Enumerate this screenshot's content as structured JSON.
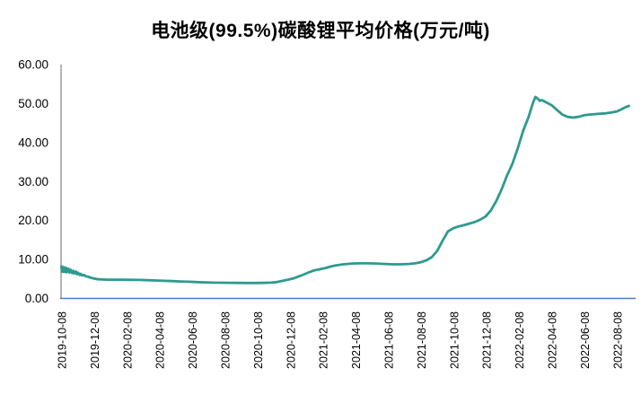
{
  "chart_data": {
    "type": "line",
    "title": "电池级(99.5%)碳酸锂平均价格(万元/吨)",
    "xlabel": "",
    "ylabel": "",
    "ylim": [
      0,
      60
    ],
    "grid": false,
    "legend_position": "none",
    "background_color": "#ffffff",
    "line_color": "#2e9a90",
    "y_axis_color": "#8c8c8c",
    "x_axis_color": "#4a7ebb",
    "text_color": "#000000",
    "yticks": [
      "0.00",
      "10.00",
      "20.00",
      "30.00",
      "40.00",
      "50.00",
      "60.00"
    ],
    "ytick_values": [
      0,
      10,
      20,
      30,
      40,
      50,
      60
    ],
    "xticks": [
      "2019-10-08",
      "2019-12-08",
      "2020-02-08",
      "2020-04-08",
      "2020-06-08",
      "2020-08-08",
      "2020-10-08",
      "2020-12-08",
      "2021-02-08",
      "2021-04-08",
      "2021-06-08",
      "2021-08-08",
      "2021-10-08",
      "2021-12-08",
      "2022-02-08",
      "2022-04-08",
      "2022-06-08",
      "2022-08-08"
    ],
    "series": [
      {
        "name": "电池级(99.5%)碳酸锂平均价格",
        "unit": "万元/吨",
        "points": [
          [
            "2019-10-08",
            8.25
          ],
          [
            "2019-10-09",
            6.9
          ],
          [
            "2019-10-10",
            8.1
          ],
          [
            "2019-10-11",
            6.8
          ],
          [
            "2019-10-14",
            7.95
          ],
          [
            "2019-10-15",
            6.75
          ],
          [
            "2019-10-17",
            7.8
          ],
          [
            "2019-10-18",
            6.7
          ],
          [
            "2019-10-21",
            7.6
          ],
          [
            "2019-10-23",
            6.6
          ],
          [
            "2019-10-25",
            7.4
          ],
          [
            "2019-10-28",
            6.5
          ],
          [
            "2019-10-30",
            7.1
          ],
          [
            "2019-11-01",
            6.4
          ],
          [
            "2019-11-04",
            6.9
          ],
          [
            "2019-11-06",
            6.2
          ],
          [
            "2019-11-08",
            6.6
          ],
          [
            "2019-11-11",
            6.0
          ],
          [
            "2019-11-13",
            6.3
          ],
          [
            "2019-11-15",
            5.9
          ],
          [
            "2019-11-19",
            6.0
          ],
          [
            "2019-11-22",
            5.7
          ],
          [
            "2019-11-26",
            5.6
          ],
          [
            "2019-12-02",
            5.3
          ],
          [
            "2019-12-06",
            5.15
          ],
          [
            "2019-12-11",
            5.0
          ],
          [
            "2019-12-16",
            4.9
          ],
          [
            "2019-12-23",
            4.85
          ],
          [
            "2020-01-02",
            4.8
          ],
          [
            "2020-01-15",
            4.8
          ],
          [
            "2020-02-01",
            4.78
          ],
          [
            "2020-02-15",
            4.76
          ],
          [
            "2020-03-01",
            4.74
          ],
          [
            "2020-03-16",
            4.68
          ],
          [
            "2020-04-01",
            4.6
          ],
          [
            "2020-04-16",
            4.52
          ],
          [
            "2020-05-01",
            4.45
          ],
          [
            "2020-05-16",
            4.36
          ],
          [
            "2020-06-01",
            4.28
          ],
          [
            "2020-06-16",
            4.2
          ],
          [
            "2020-07-01",
            4.12
          ],
          [
            "2020-07-16",
            4.06
          ],
          [
            "2020-08-01",
            4.02
          ],
          [
            "2020-08-16",
            4.0
          ],
          [
            "2020-09-01",
            3.98
          ],
          [
            "2020-09-16",
            3.96
          ],
          [
            "2020-10-01",
            3.96
          ],
          [
            "2020-10-16",
            3.98
          ],
          [
            "2020-11-01",
            4.05
          ],
          [
            "2020-11-12",
            4.2
          ],
          [
            "2020-11-22",
            4.5
          ],
          [
            "2020-12-02",
            4.8
          ],
          [
            "2020-12-12",
            5.1
          ],
          [
            "2020-12-22",
            5.6
          ],
          [
            "2021-01-01",
            6.1
          ],
          [
            "2021-01-11",
            6.7
          ],
          [
            "2021-01-21",
            7.2
          ],
          [
            "2021-02-01",
            7.5
          ],
          [
            "2021-02-11",
            7.8
          ],
          [
            "2021-02-21",
            8.2
          ],
          [
            "2021-03-03",
            8.5
          ],
          [
            "2021-03-13",
            8.7
          ],
          [
            "2021-03-23",
            8.85
          ],
          [
            "2021-04-02",
            8.95
          ],
          [
            "2021-04-16",
            9.0
          ],
          [
            "2021-05-01",
            9.0
          ],
          [
            "2021-05-16",
            8.95
          ],
          [
            "2021-06-01",
            8.85
          ],
          [
            "2021-06-16",
            8.75
          ],
          [
            "2021-07-01",
            8.75
          ],
          [
            "2021-07-16",
            8.85
          ],
          [
            "2021-07-28",
            9.0
          ],
          [
            "2021-08-08",
            9.3
          ],
          [
            "2021-08-18",
            9.8
          ],
          [
            "2021-08-28",
            10.6
          ],
          [
            "2021-09-07",
            12.2
          ],
          [
            "2021-09-17",
            14.8
          ],
          [
            "2021-09-27",
            17.2
          ],
          [
            "2021-10-07",
            18.0
          ],
          [
            "2021-10-17",
            18.5
          ],
          [
            "2021-10-27",
            18.8
          ],
          [
            "2021-11-06",
            19.2
          ],
          [
            "2021-11-16",
            19.6
          ],
          [
            "2021-11-26",
            20.2
          ],
          [
            "2021-12-06",
            21.0
          ],
          [
            "2021-12-16",
            22.6
          ],
          [
            "2021-12-26",
            25.0
          ],
          [
            "2022-01-05",
            28.0
          ],
          [
            "2022-01-15",
            31.5
          ],
          [
            "2022-01-25",
            34.5
          ],
          [
            "2022-02-04",
            38.5
          ],
          [
            "2022-02-14",
            43.0
          ],
          [
            "2022-02-24",
            46.5
          ],
          [
            "2022-03-04",
            50.0
          ],
          [
            "2022-03-09",
            51.7
          ],
          [
            "2022-03-14",
            51.2
          ],
          [
            "2022-03-17",
            50.7
          ],
          [
            "2022-03-21",
            50.9
          ],
          [
            "2022-03-28",
            50.4
          ],
          [
            "2022-04-08",
            49.6
          ],
          [
            "2022-04-18",
            48.4
          ],
          [
            "2022-04-28",
            47.2
          ],
          [
            "2022-05-08",
            46.6
          ],
          [
            "2022-05-18",
            46.4
          ],
          [
            "2022-05-28",
            46.6
          ],
          [
            "2022-06-08",
            47.0
          ],
          [
            "2022-06-18",
            47.2
          ],
          [
            "2022-06-28",
            47.3
          ],
          [
            "2022-07-08",
            47.4
          ],
          [
            "2022-07-18",
            47.5
          ],
          [
            "2022-07-28",
            47.7
          ],
          [
            "2022-08-08",
            48.0
          ],
          [
            "2022-08-16",
            48.5
          ],
          [
            "2022-08-24",
            49.1
          ],
          [
            "2022-08-30",
            49.4
          ]
        ]
      }
    ]
  }
}
